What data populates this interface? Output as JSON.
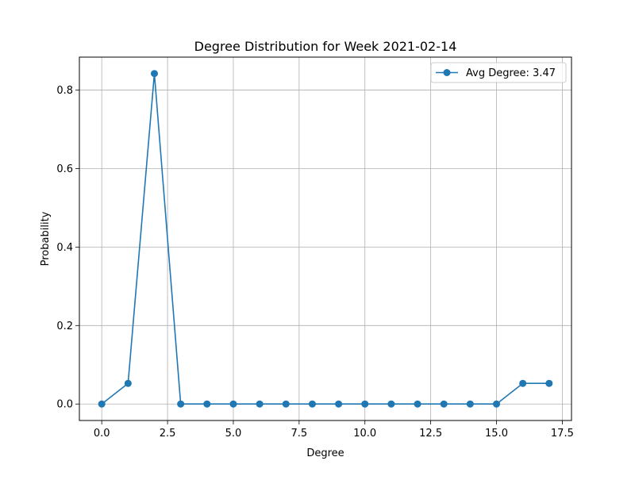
{
  "chart_data": {
    "type": "line",
    "title": "Degree Distribution for Week 2021-02-14",
    "xlabel": "Degree",
    "ylabel": "Probability",
    "xlim": [
      -0.85,
      17.85
    ],
    "ylim": [
      -0.042,
      0.884
    ],
    "xticks": [
      0.0,
      2.5,
      5.0,
      7.5,
      10.0,
      12.5,
      15.0,
      17.5
    ],
    "xtick_labels": [
      "0.0",
      "2.5",
      "5.0",
      "7.5",
      "10.0",
      "12.5",
      "15.0",
      "17.5"
    ],
    "yticks": [
      0.0,
      0.2,
      0.4,
      0.6,
      0.8
    ],
    "ytick_labels": [
      "0.0",
      "0.2",
      "0.4",
      "0.6",
      "0.8"
    ],
    "grid": true,
    "legend_position": "top-right",
    "series": [
      {
        "name": "Avg Degree: 3.47",
        "color": "#1f77b4",
        "marker": "circle",
        "x": [
          0,
          1,
          2,
          3,
          4,
          5,
          6,
          7,
          8,
          9,
          10,
          11,
          12,
          13,
          14,
          15,
          16,
          17
        ],
        "y": [
          0.0,
          0.0526,
          0.8421,
          0.0,
          0.0,
          0.0,
          0.0,
          0.0,
          0.0,
          0.0,
          0.0,
          0.0,
          0.0,
          0.0,
          0.0,
          0.0,
          0.0526,
          0.0526
        ]
      }
    ]
  }
}
